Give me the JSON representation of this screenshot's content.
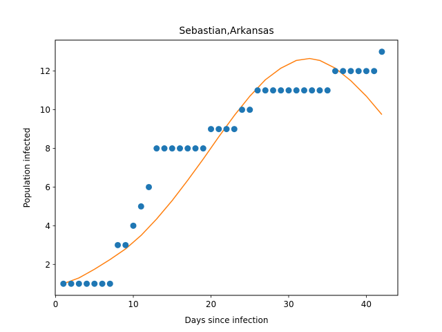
{
  "chart_data": {
    "type": "scatter",
    "title": "Sebastian,Arkansas",
    "xlabel": "Days since infection",
    "ylabel": "Population infected",
    "xlim": [
      -0.05,
      44.05
    ],
    "ylim": [
      0.4,
      13.6
    ],
    "xticks": [
      0,
      10,
      20,
      30,
      40
    ],
    "yticks": [
      2,
      4,
      6,
      8,
      10,
      12
    ],
    "grid": false,
    "series": [
      {
        "kind": "scatter",
        "color": "#1f77b4",
        "x": [
          1,
          2,
          3,
          4,
          5,
          6,
          7,
          8,
          9,
          10,
          11,
          12,
          13,
          14,
          15,
          16,
          17,
          18,
          19,
          20,
          21,
          22,
          23,
          24,
          25,
          26,
          27,
          28,
          29,
          30,
          31,
          32,
          33,
          34,
          35,
          36,
          37,
          38,
          39,
          40,
          41,
          42
        ],
        "y": [
          1,
          1,
          1,
          1,
          1,
          1,
          1,
          3,
          3,
          4,
          5,
          6,
          8,
          8,
          8,
          8,
          8,
          8,
          8,
          9,
          9,
          9,
          9,
          10,
          10,
          11,
          11,
          11,
          11,
          11,
          11,
          11,
          11,
          11,
          11,
          12,
          12,
          12,
          12,
          12,
          12,
          13
        ]
      },
      {
        "kind": "line",
        "color": "#ff7f0e",
        "x": [
          1,
          3,
          5,
          7,
          9,
          11,
          13,
          15,
          17,
          19,
          21,
          23,
          25,
          27,
          29,
          31,
          32.7,
          34,
          36,
          38,
          40,
          42
        ],
        "y": [
          1.0,
          1.3,
          1.75,
          2.25,
          2.8,
          3.5,
          4.35,
          5.3,
          6.35,
          7.45,
          8.6,
          9.7,
          10.7,
          11.55,
          12.15,
          12.55,
          12.65,
          12.55,
          12.15,
          11.5,
          10.7,
          9.75
        ]
      }
    ]
  }
}
